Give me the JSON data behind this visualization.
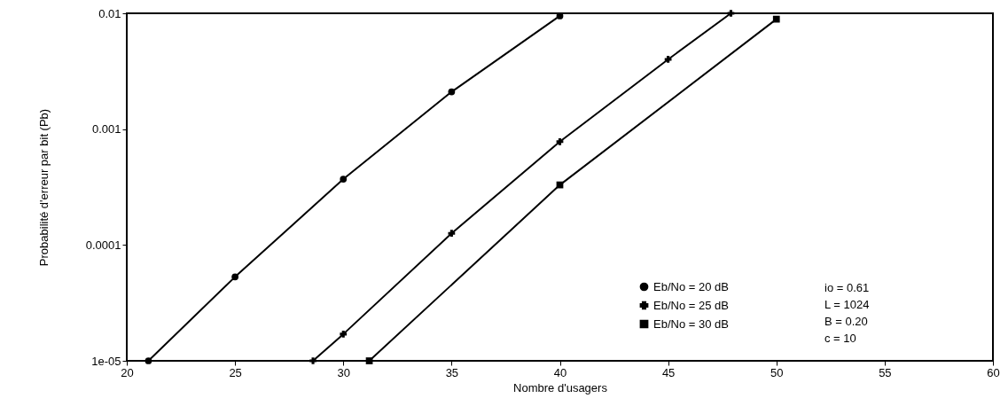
{
  "chart_data": {
    "type": "line",
    "xlabel": "Nombre d'usagers",
    "ylabel": "Probabilité d'erreur par bit (Pb)",
    "xlim": [
      20,
      60
    ],
    "xticks": [
      20,
      25,
      30,
      35,
      40,
      45,
      50,
      55,
      60
    ],
    "ylim": [
      1e-05,
      0.01
    ],
    "yticks": [
      0.01,
      0.001,
      0.0001,
      {
        "value": 1e-05,
        "label": "1e-05"
      }
    ],
    "log": "y",
    "grid": false,
    "legend": "bottom right",
    "series": [
      {
        "name": "Eb/No = 20 dB",
        "color": "#000000",
        "marker": "circle",
        "x": [
          21,
          25,
          30,
          35,
          40
        ],
        "values": [
          1e-05,
          5.3e-05,
          0.00037,
          0.0021,
          0.0095
        ]
      },
      {
        "name": "Eb/No = 25 dB",
        "color": "#000000",
        "marker": "cross",
        "x": [
          28.6,
          30,
          35,
          40,
          45,
          47.9
        ],
        "values": [
          1e-05,
          1.7e-05,
          0.000126,
          0.00078,
          0.004,
          0.01
        ]
      },
      {
        "name": "Eb/No = 30 dB",
        "color": "#000000",
        "marker": "square",
        "x": [
          31.2,
          40,
          50
        ],
        "values": [
          1e-05,
          0.00033,
          0.0089
        ]
      }
    ],
    "annotations": [
      "io = 0.61",
      "L = 1024",
      "B = 0.20",
      "c = 10"
    ]
  }
}
